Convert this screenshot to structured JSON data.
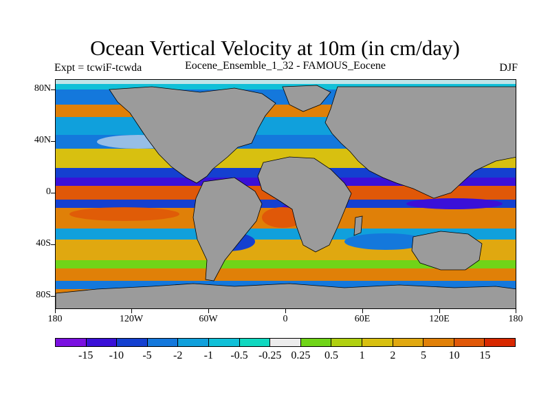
{
  "title": "Ocean Vertical Velocity at 10m (in cm/day)",
  "subtitle_left": "Expt = tcwiF-tcwda",
  "subtitle_center": "Eocene_Ensemble_1_32 - FAMOUS_Eocene",
  "subtitle_right": "DJF",
  "lat_labels": [
    "80N",
    "40N",
    "0",
    "40S",
    "80S"
  ],
  "lon_labels": [
    "180",
    "120W",
    "60W",
    "0",
    "60E",
    "120E",
    "180"
  ],
  "colorbar": {
    "labels": [
      "-15",
      "-10",
      "-5",
      "-2",
      "-1",
      "-0.5",
      "-0.25",
      "0.25",
      "0.5",
      "1",
      "2",
      "5",
      "10",
      "15"
    ],
    "colors": [
      "#7a10e0",
      "#3a10d8",
      "#1440d0",
      "#1478dc",
      "#10a0dc",
      "#10c0d8",
      "#10d8c0",
      "#ececec",
      "#70d418",
      "#b0d010",
      "#d8c010",
      "#e0a810",
      "#e08008",
      "#e05808",
      "#d82800"
    ]
  },
  "land_color": "#9b9b9b"
}
